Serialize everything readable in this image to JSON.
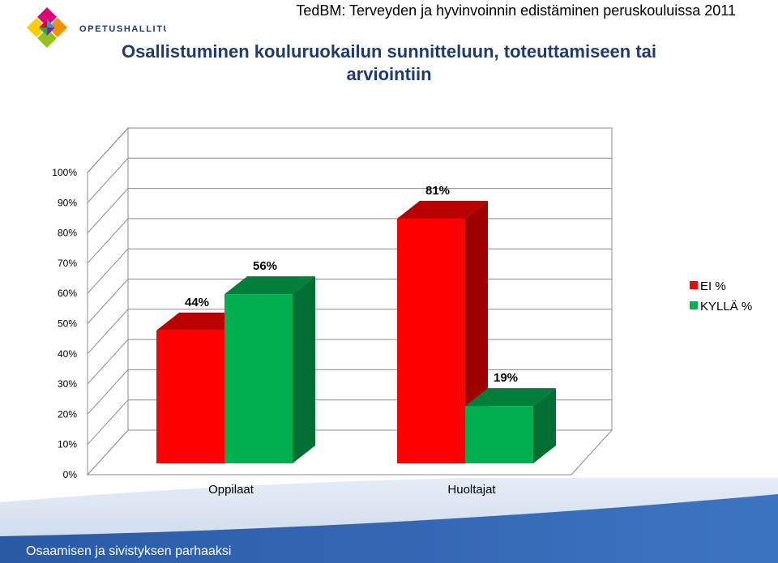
{
  "header": {
    "brand": "OPETUSHALLITUS",
    "top_title": "TedBM: Terveyden ja hyvinvoinnin edistäminen peruskouluissa 2011",
    "main_title": "Osallistuminen kouluruokailun sunnitteluun, toteuttamiseen tai arviointiin"
  },
  "footer": {
    "slogan": "Osaamisen ja sivistyksen parhaaksi"
  },
  "colors": {
    "ei": "#ff0000",
    "kylla": "#00b050",
    "title": "#1d3b70",
    "footer": "#2f62ad"
  },
  "chart_data": {
    "type": "bar",
    "style": "3d-clustered",
    "categories": [
      "Oppilaat",
      "Huoltajat"
    ],
    "series": [
      {
        "name": "EI %",
        "values": [
          44,
          81
        ],
        "labels": [
          "44%",
          "81%"
        ],
        "color": "#ff0000"
      },
      {
        "name": "KYLLÄ %",
        "values": [
          56,
          19
        ],
        "labels": [
          "56%",
          "19%"
        ],
        "color": "#00b050"
      }
    ],
    "ylim": [
      0,
      100
    ],
    "yticks": [
      "0%",
      "10%",
      "20%",
      "30%",
      "40%",
      "50%",
      "60%",
      "70%",
      "80%",
      "90%",
      "100%"
    ],
    "grid": true,
    "legend": "right"
  }
}
